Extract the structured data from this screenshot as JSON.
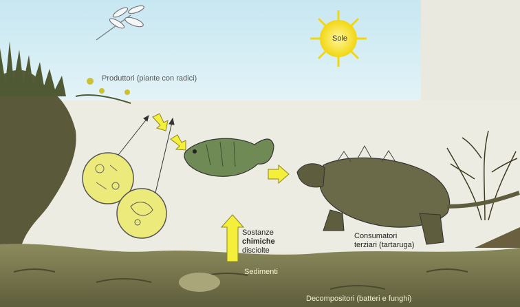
{
  "diagram": {
    "sun_label": "Sole",
    "producers_label": "Produttori (piante con radici)",
    "dissolved_chemicals": {
      "line1": "Sostanze",
      "line2": "chimiche",
      "line3": "disciolte"
    },
    "tertiary_consumers": {
      "line1": "Consumatori",
      "line2": "terziari (tartaruga)"
    },
    "sediments_label": "Sedimenti",
    "decomposers_label": "Decompositori (batteri e funghi)"
  },
  "colors": {
    "sky": "#cfeaf3",
    "water": "#ecece2",
    "sediment": "#7b7a52",
    "arrow": "#f3ef3a",
    "sun": "#f7e21c",
    "plankton": "#e8e46a"
  }
}
